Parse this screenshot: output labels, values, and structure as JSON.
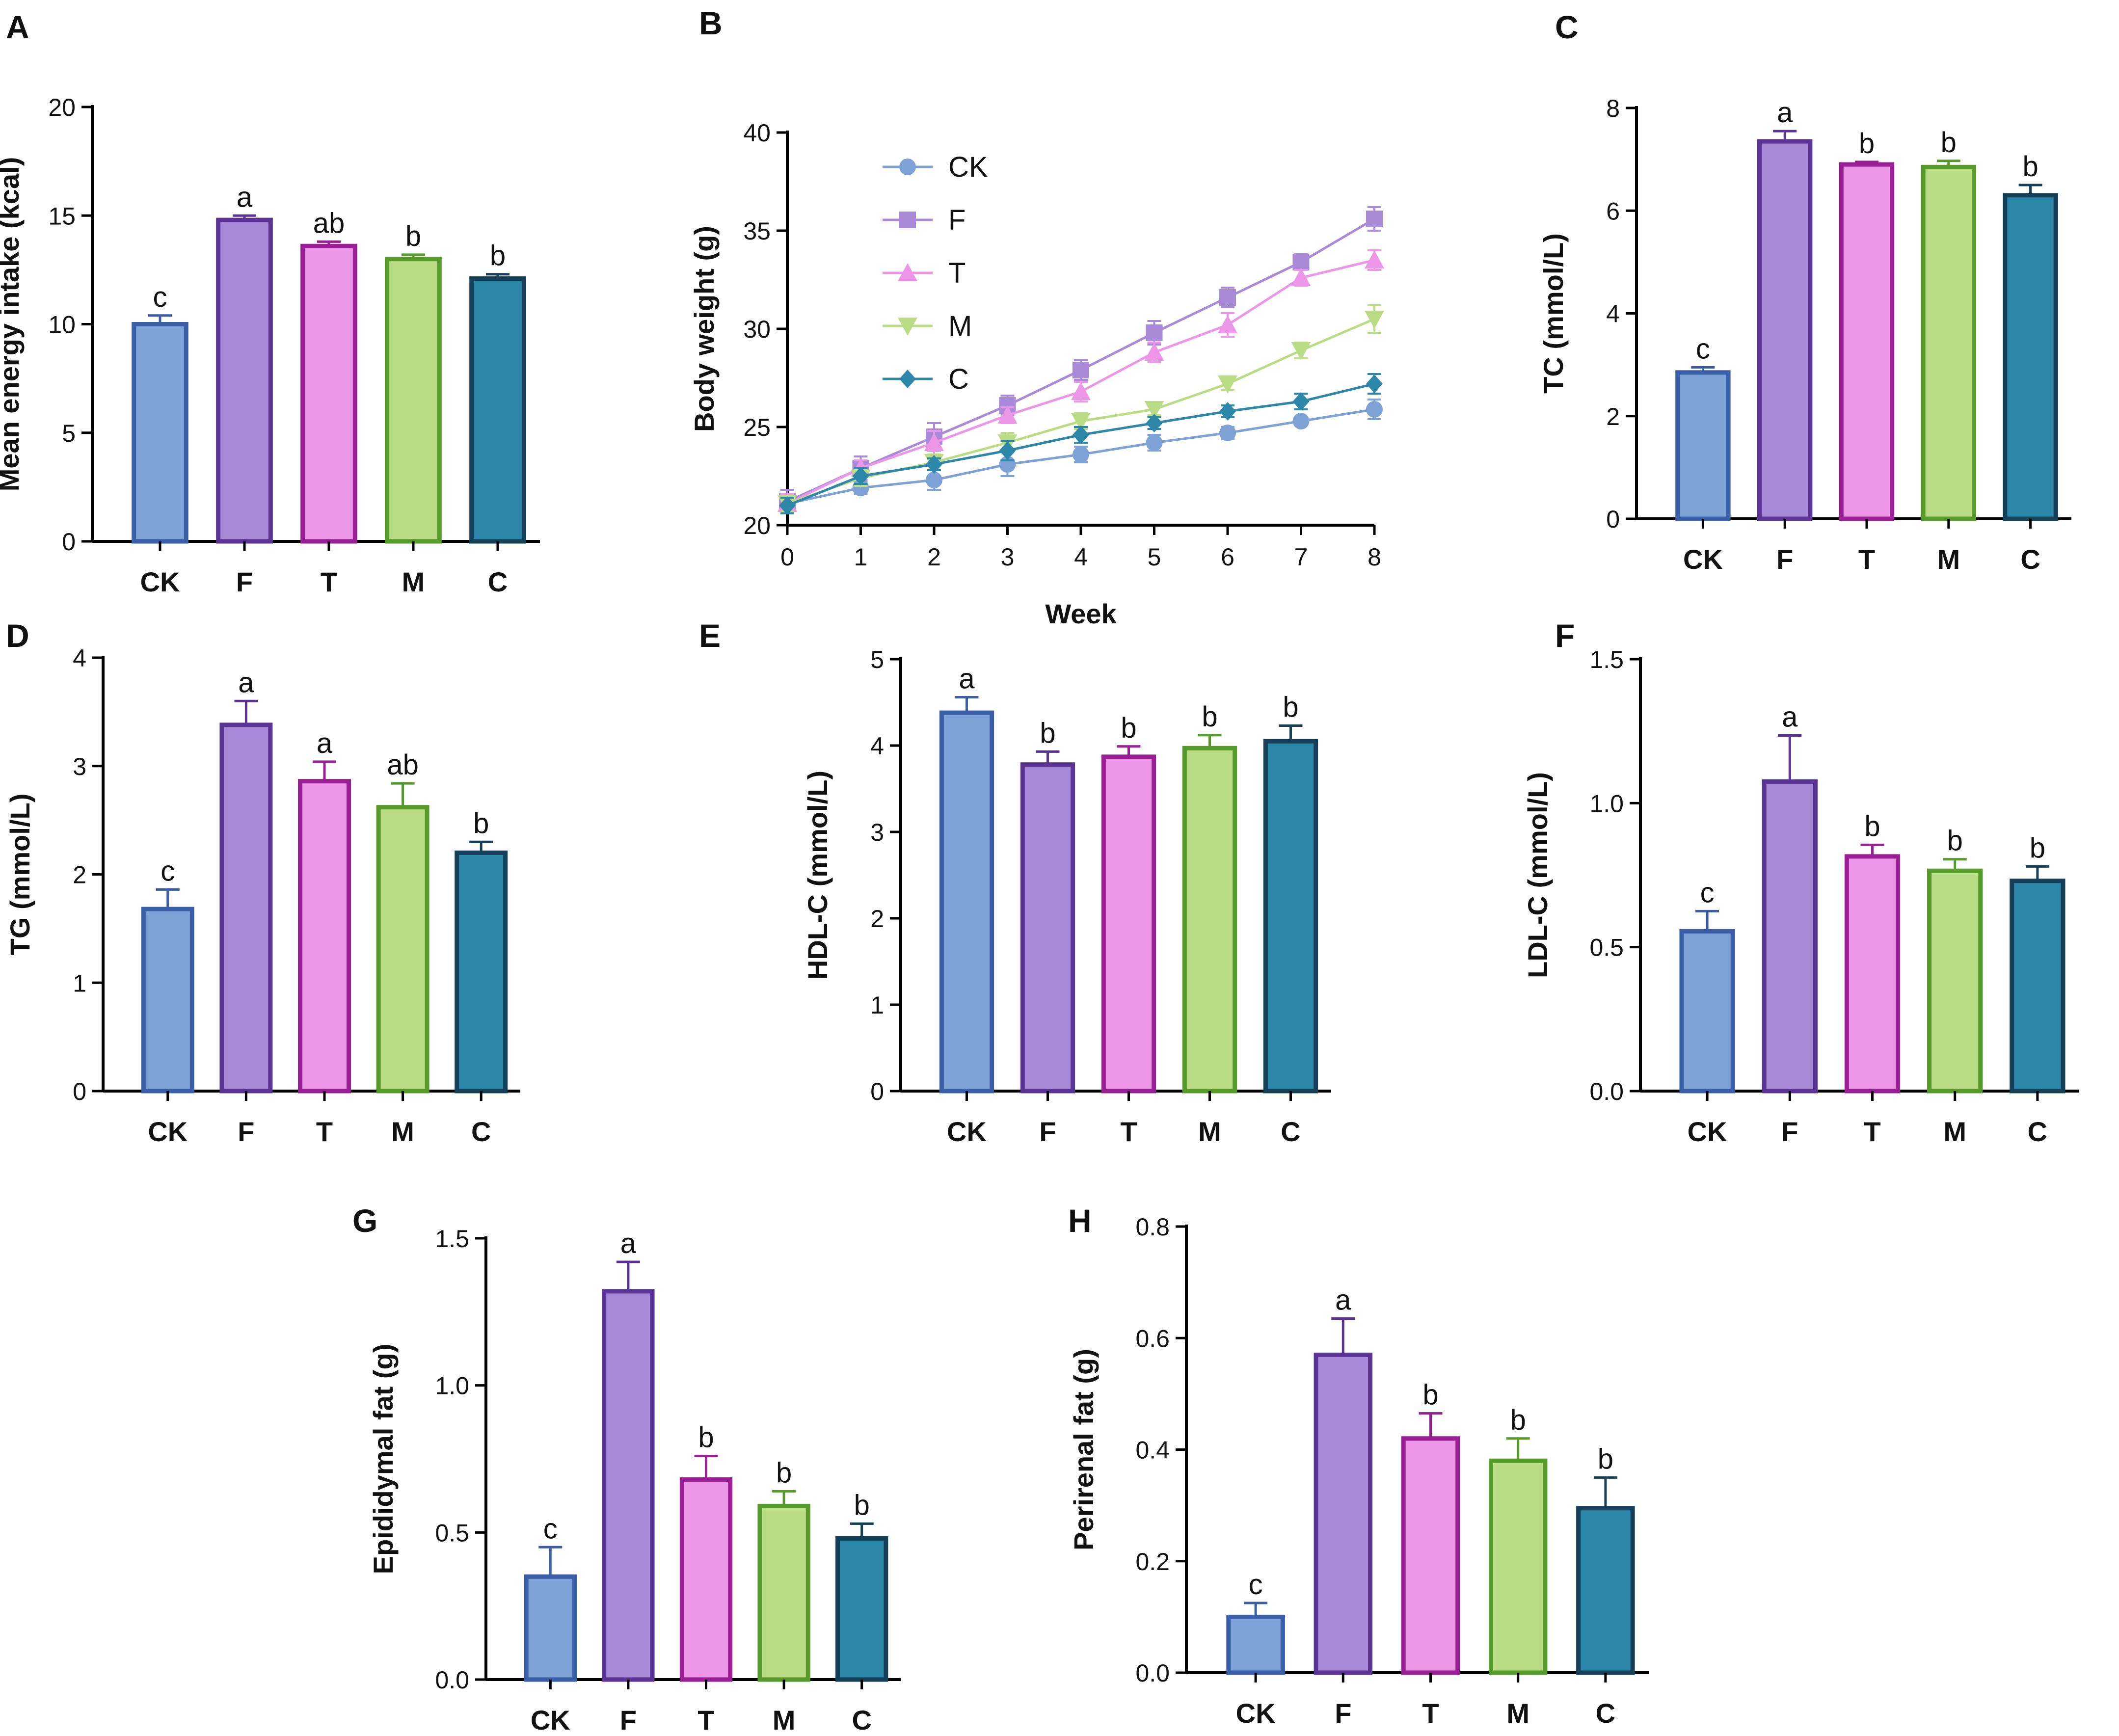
{
  "figure_title": "",
  "colors": {
    "CK": {
      "fill": "#7ea2d6",
      "stroke": "#3a5fa8"
    },
    "F": {
      "fill": "#a88ad8",
      "stroke": "#5a3494"
    },
    "T": {
      "fill": "#ec96e8",
      "stroke": "#9a1e94"
    },
    "M": {
      "fill": "#b9dc85",
      "stroke": "#559a2a"
    },
    "C": {
      "fill": "#2d87a8",
      "stroke": "#163f5a"
    },
    "line": {
      "CK": "#7ea2d6",
      "F": "#a88ad8",
      "T": "#ec96e8",
      "M": "#b9dc85",
      "C": "#2d87a8"
    }
  },
  "chart_data": [
    {
      "id": "A",
      "panel": "A",
      "type": "bar",
      "categories": [
        "CK",
        "F",
        "T",
        "M",
        "C"
      ],
      "values": [
        10.0,
        14.8,
        13.6,
        13.0,
        12.1
      ],
      "errors": [
        0.4,
        0.2,
        0.2,
        0.2,
        0.2
      ],
      "significance": [
        "c",
        "a",
        "ab",
        "b",
        "b"
      ],
      "ylabel": "Mean energy intake (kcal)",
      "xlabel": "",
      "ylim": [
        0,
        20
      ],
      "yticks": [
        "0",
        "5",
        "10",
        "15",
        "20"
      ]
    },
    {
      "id": "B",
      "panel": "B",
      "type": "line",
      "x": [
        0,
        1,
        2,
        3,
        4,
        5,
        6,
        7,
        8
      ],
      "xticks": [
        "0",
        "1",
        "2",
        "3",
        "4",
        "5",
        "6",
        "7",
        "8"
      ],
      "xlabel": "Week",
      "ylabel": "Body weight (g)",
      "ylim": [
        20,
        40
      ],
      "yticks": [
        "20",
        "25",
        "30",
        "35",
        "40"
      ],
      "legend_position": "top-left",
      "series": [
        {
          "name": "CK",
          "marker": "circle",
          "values": [
            21.1,
            21.9,
            22.3,
            23.1,
            23.6,
            24.2,
            24.7,
            25.3,
            25.9
          ],
          "errors": [
            0.5,
            0.3,
            0.5,
            0.6,
            0.4,
            0.4,
            0.3,
            0.2,
            0.5
          ]
        },
        {
          "name": "F",
          "marker": "square",
          "values": [
            21.2,
            22.9,
            24.5,
            26.1,
            27.9,
            29.8,
            31.6,
            33.4,
            35.6
          ],
          "errors": [
            0.6,
            0.6,
            0.7,
            0.5,
            0.5,
            0.6,
            0.5,
            0.4,
            0.6
          ]
        },
        {
          "name": "T",
          "marker": "triangle-up",
          "values": [
            21.1,
            22.9,
            24.2,
            25.6,
            26.8,
            28.8,
            30.2,
            32.6,
            33.5
          ],
          "errors": [
            0.5,
            0.4,
            0.6,
            0.4,
            0.5,
            0.5,
            0.6,
            0.4,
            0.5
          ]
        },
        {
          "name": "M",
          "marker": "triangle-down",
          "values": [
            21.1,
            22.4,
            23.2,
            24.2,
            25.3,
            25.9,
            27.2,
            28.9,
            30.5
          ],
          "errors": [
            0.4,
            0.4,
            0.4,
            0.5,
            0.4,
            0.3,
            0.3,
            0.4,
            0.7
          ]
        },
        {
          "name": "C",
          "marker": "diamond",
          "values": [
            21.0,
            22.5,
            23.1,
            23.8,
            24.6,
            25.2,
            25.8,
            26.3,
            27.2
          ],
          "errors": [
            0.4,
            0.4,
            0.3,
            0.5,
            0.4,
            0.3,
            0.3,
            0.4,
            0.5
          ]
        }
      ]
    },
    {
      "id": "C",
      "panel": "C",
      "type": "bar",
      "categories": [
        "CK",
        "F",
        "T",
        "M",
        "C"
      ],
      "values": [
        2.85,
        7.35,
        6.9,
        6.85,
        6.3
      ],
      "errors": [
        0.1,
        0.2,
        0.05,
        0.12,
        0.2
      ],
      "significance": [
        "c",
        "a",
        "b",
        "b",
        "b"
      ],
      "ylabel": "TC (mmol/L)",
      "xlabel": "",
      "ylim": [
        0,
        8
      ],
      "yticks": [
        "0",
        "2",
        "4",
        "6",
        "8"
      ]
    },
    {
      "id": "D",
      "panel": "D",
      "type": "bar",
      "categories": [
        "CK",
        "F",
        "T",
        "M",
        "C"
      ],
      "values": [
        1.68,
        3.38,
        2.86,
        2.62,
        2.2
      ],
      "errors": [
        0.18,
        0.22,
        0.18,
        0.22,
        0.1
      ],
      "significance": [
        "c",
        "a",
        "a",
        "ab",
        "b"
      ],
      "ylabel": "TG (mmol/L)",
      "xlabel": "",
      "ylim": [
        0,
        4
      ],
      "yticks": [
        "0",
        "1",
        "2",
        "3",
        "4"
      ]
    },
    {
      "id": "E",
      "panel": "E",
      "type": "bar",
      "categories": [
        "CK",
        "F",
        "T",
        "M",
        "C"
      ],
      "values": [
        4.38,
        3.78,
        3.87,
        3.97,
        4.05
      ],
      "errors": [
        0.18,
        0.15,
        0.12,
        0.15,
        0.18
      ],
      "significance": [
        "a",
        "b",
        "b",
        "b",
        "b"
      ],
      "ylabel": "HDL-C (mmol/L)",
      "xlabel": "",
      "ylim": [
        0,
        5
      ],
      "yticks": [
        "0",
        "1",
        "2",
        "3",
        "4",
        "5"
      ]
    },
    {
      "id": "F",
      "panel": "F",
      "type": "bar",
      "categories": [
        "CK",
        "F",
        "T",
        "M",
        "C"
      ],
      "values": [
        0.555,
        1.075,
        0.815,
        0.765,
        0.73
      ],
      "errors": [
        0.07,
        0.16,
        0.04,
        0.04,
        0.05
      ],
      "significance": [
        "c",
        "a",
        "b",
        "b",
        "b"
      ],
      "ylabel": "LDL-C (mmol/L)",
      "xlabel": "",
      "ylim": [
        0,
        1.5
      ],
      "yticks": [
        "0.0",
        "0.5",
        "1.0",
        "1.5"
      ]
    },
    {
      "id": "G",
      "panel": "G",
      "type": "bar",
      "categories": [
        "CK",
        "F",
        "T",
        "M",
        "C"
      ],
      "values": [
        0.35,
        1.32,
        0.68,
        0.59,
        0.48
      ],
      "errors": [
        0.1,
        0.1,
        0.08,
        0.05,
        0.05
      ],
      "significance": [
        "c",
        "a",
        "b",
        "b",
        "b"
      ],
      "ylabel": "Epididymal fat (g)",
      "xlabel": "",
      "ylim": [
        0,
        1.5
      ],
      "yticks": [
        "0.0",
        "0.5",
        "1.0",
        "1.5"
      ]
    },
    {
      "id": "H",
      "panel": "H",
      "type": "bar",
      "categories": [
        "CK",
        "F",
        "T",
        "M",
        "C"
      ],
      "values": [
        0.1,
        0.57,
        0.42,
        0.38,
        0.295
      ],
      "errors": [
        0.025,
        0.065,
        0.045,
        0.04,
        0.055
      ],
      "significance": [
        "c",
        "a",
        "b",
        "b",
        "b"
      ],
      "ylabel": "Perirenal fat (g)",
      "xlabel": "",
      "ylim": [
        0,
        0.8
      ],
      "yticks": [
        "0.0",
        "0.2",
        "0.4",
        "0.6",
        "0.8"
      ]
    }
  ]
}
